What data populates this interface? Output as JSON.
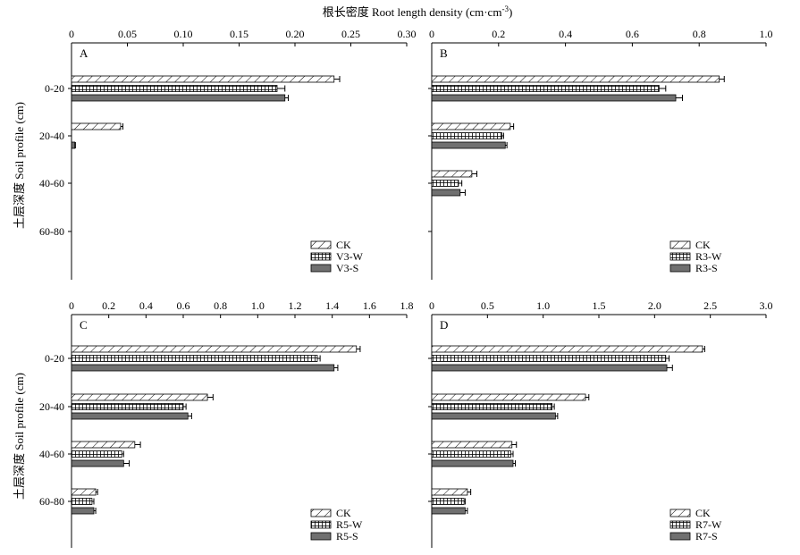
{
  "figure": {
    "top_label": "根长密度 Root length density (cm·cm",
    "top_label_sup": "-3",
    "top_label_close": ")",
    "y_label": "土层深度 Soil profile (cm)"
  },
  "colors": {
    "axis": "#000000",
    "bar_edge": "#000000",
    "bar_solid": "#707070",
    "bar_background": "#ffffff"
  },
  "chart_data": [
    {
      "type": "bar",
      "orientation": "horizontal",
      "panel": "A",
      "categories": [
        "0-20",
        "20-40",
        "40-60",
        "60-80"
      ],
      "xlim": [
        0,
        0.3
      ],
      "xticks": [
        "0",
        "0.05",
        "0.10",
        "0.15",
        "0.20",
        "0.25",
        "0.30"
      ],
      "legend_position": "bottom-right",
      "series": [
        {
          "name": "CK",
          "pattern": "hatch",
          "values": [
            0.235,
            0.044,
            null,
            null
          ],
          "errors": [
            0.005,
            0.002,
            null,
            null
          ]
        },
        {
          "name": "V3-W",
          "pattern": "grid",
          "values": [
            0.184,
            null,
            null,
            null
          ],
          "errors": [
            0.007,
            null,
            null,
            null
          ]
        },
        {
          "name": "V3-S",
          "pattern": "solid",
          "values": [
            0.191,
            0.003,
            null,
            null
          ],
          "errors": [
            0.003,
            0.0005,
            null,
            null
          ]
        }
      ]
    },
    {
      "type": "bar",
      "orientation": "horizontal",
      "panel": "B",
      "categories": [
        "0-20",
        "20-40",
        "40-60",
        "60-80"
      ],
      "xlim": [
        0,
        1.0
      ],
      "xticks": [
        "0",
        "0.2",
        "0.4",
        "0.6",
        "0.8",
        "1.0"
      ],
      "legend_position": "bottom-right",
      "series": [
        {
          "name": "CK",
          "pattern": "hatch",
          "values": [
            0.86,
            0.235,
            0.12,
            null
          ],
          "errors": [
            0.015,
            0.01,
            0.015,
            null
          ]
        },
        {
          "name": "R3-W",
          "pattern": "grid",
          "values": [
            0.68,
            0.21,
            0.08,
            null
          ],
          "errors": [
            0.02,
            0.005,
            0.01,
            null
          ]
        },
        {
          "name": "R3-S",
          "pattern": "solid",
          "values": [
            0.73,
            0.22,
            0.085,
            null
          ],
          "errors": [
            0.02,
            0.005,
            0.015,
            null
          ]
        }
      ]
    },
    {
      "type": "bar",
      "orientation": "horizontal",
      "panel": "C",
      "categories": [
        "0-20",
        "20-40",
        "40-60",
        "60-80"
      ],
      "xlim": [
        0,
        1.8
      ],
      "xticks": [
        "0",
        "0.2",
        "0.4",
        "0.6",
        "0.8",
        "1.0",
        "1.2",
        "1.4",
        "1.6",
        "1.8"
      ],
      "legend_position": "bottom-right",
      "series": [
        {
          "name": "CK",
          "pattern": "hatch",
          "values": [
            1.53,
            0.73,
            0.34,
            0.13
          ],
          "errors": [
            0.02,
            0.03,
            0.03,
            0.01
          ]
        },
        {
          "name": "R5-W",
          "pattern": "grid",
          "values": [
            1.32,
            0.6,
            0.27,
            0.11
          ],
          "errors": [
            0.015,
            0.015,
            0.01,
            0.01
          ]
        },
        {
          "name": "R5-S",
          "pattern": "solid",
          "values": [
            1.41,
            0.625,
            0.28,
            0.12
          ],
          "errors": [
            0.02,
            0.02,
            0.03,
            0.01
          ]
        }
      ]
    },
    {
      "type": "bar",
      "orientation": "horizontal",
      "panel": "D",
      "categories": [
        "0-20",
        "20-40",
        "40-60",
        "60-80"
      ],
      "xlim": [
        0,
        3.0
      ],
      "xticks": [
        "0",
        "0.5",
        "1.0",
        "1.5",
        "2.0",
        "2.5",
        "3.0"
      ],
      "legend_position": "bottom-right",
      "series": [
        {
          "name": "CK",
          "pattern": "hatch",
          "values": [
            2.43,
            1.38,
            0.72,
            0.32
          ],
          "errors": [
            0.02,
            0.03,
            0.04,
            0.03
          ]
        },
        {
          "name": "R7-W",
          "pattern": "grid",
          "values": [
            2.1,
            1.08,
            0.71,
            0.29
          ],
          "errors": [
            0.03,
            0.02,
            0.02,
            0.01
          ]
        },
        {
          "name": "R7-S",
          "pattern": "solid",
          "values": [
            2.11,
            1.11,
            0.73,
            0.3
          ],
          "errors": [
            0.05,
            0.02,
            0.02,
            0.02
          ]
        }
      ]
    }
  ]
}
